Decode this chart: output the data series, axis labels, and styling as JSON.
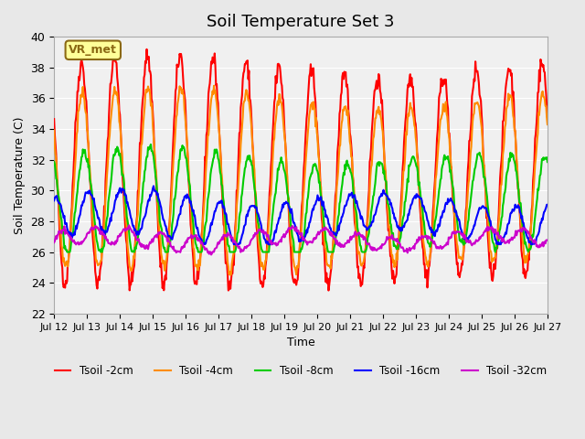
{
  "title": "Soil Temperature Set 3",
  "xlabel": "Time",
  "ylabel": "Soil Temperature (C)",
  "ylim": [
    22,
    40
  ],
  "n_days": 15,
  "x_tick_labels": [
    "Jul 12",
    "Jul 13",
    "Jul 14",
    "Jul 15",
    "Jul 16",
    "Jul 17",
    "Jul 18",
    "Jul 19",
    "Jul 20",
    "Jul 21",
    "Jul 22",
    "Jul 23",
    "Jul 24",
    "Jul 25",
    "Jul 26",
    "Jul 27"
  ],
  "legend_labels": [
    "Tsoil -2cm",
    "Tsoil -4cm",
    "Tsoil -8cm",
    "Tsoil -16cm",
    "Tsoil -32cm"
  ],
  "line_colors": [
    "#ff0000",
    "#ff8c00",
    "#00cc00",
    "#0000ff",
    "#cc00cc"
  ],
  "line_widths": [
    1.5,
    1.5,
    1.5,
    1.5,
    1.5
  ],
  "bg_color": "#e8e8e8",
  "plot_bg_color": "#f0f0f0",
  "annotation_text": "VR_met",
  "annotation_color": "#8b6914",
  "annotation_bg": "#ffff99",
  "annotation_border": "#8b6914",
  "yticks": [
    22,
    24,
    26,
    28,
    30,
    32,
    34,
    36,
    38,
    40
  ]
}
